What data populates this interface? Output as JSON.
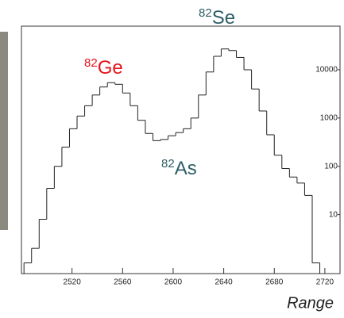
{
  "chart_data": {
    "type": "histogram",
    "bins": [
      2482,
      2488,
      2494,
      2500,
      2506,
      2512,
      2518,
      2524,
      2530,
      2536,
      2542,
      2548,
      2554,
      2560,
      2566,
      2572,
      2578,
      2584,
      2590,
      2596,
      2602,
      2608,
      2614,
      2620,
      2626,
      2632,
      2638,
      2644,
      2650,
      2656,
      2662,
      2668,
      2674,
      2680,
      2686,
      2692,
      2698,
      2704,
      2710,
      2716
    ],
    "values": [
      1,
      2,
      8,
      35,
      100,
      250,
      600,
      1100,
      1800,
      3000,
      4400,
      5400,
      5000,
      3300,
      1800,
      900,
      480,
      340,
      360,
      430,
      500,
      600,
      1000,
      3000,
      9000,
      19000,
      27000,
      25000,
      18000,
      10000,
      4000,
      1400,
      450,
      170,
      90,
      60,
      45,
      25,
      1
    ],
    "color": "#222222",
    "xlim": [
      2480,
      2732
    ],
    "xticks": [
      2520,
      2560,
      2600,
      2640,
      2680,
      2720
    ],
    "ylim": [
      0.6,
      80000
    ],
    "yticks": [
      10,
      100,
      1000,
      10000
    ],
    "log_y": true,
    "xlabel": "Range",
    "annotations": [
      {
        "mass": "82",
        "symbol": "Se",
        "color": "#2e5e66"
      },
      {
        "mass": "82",
        "symbol": "Ge",
        "color": "#e8141c"
      },
      {
        "mass": "82",
        "symbol": "As",
        "color": "#2e5e66"
      }
    ]
  }
}
